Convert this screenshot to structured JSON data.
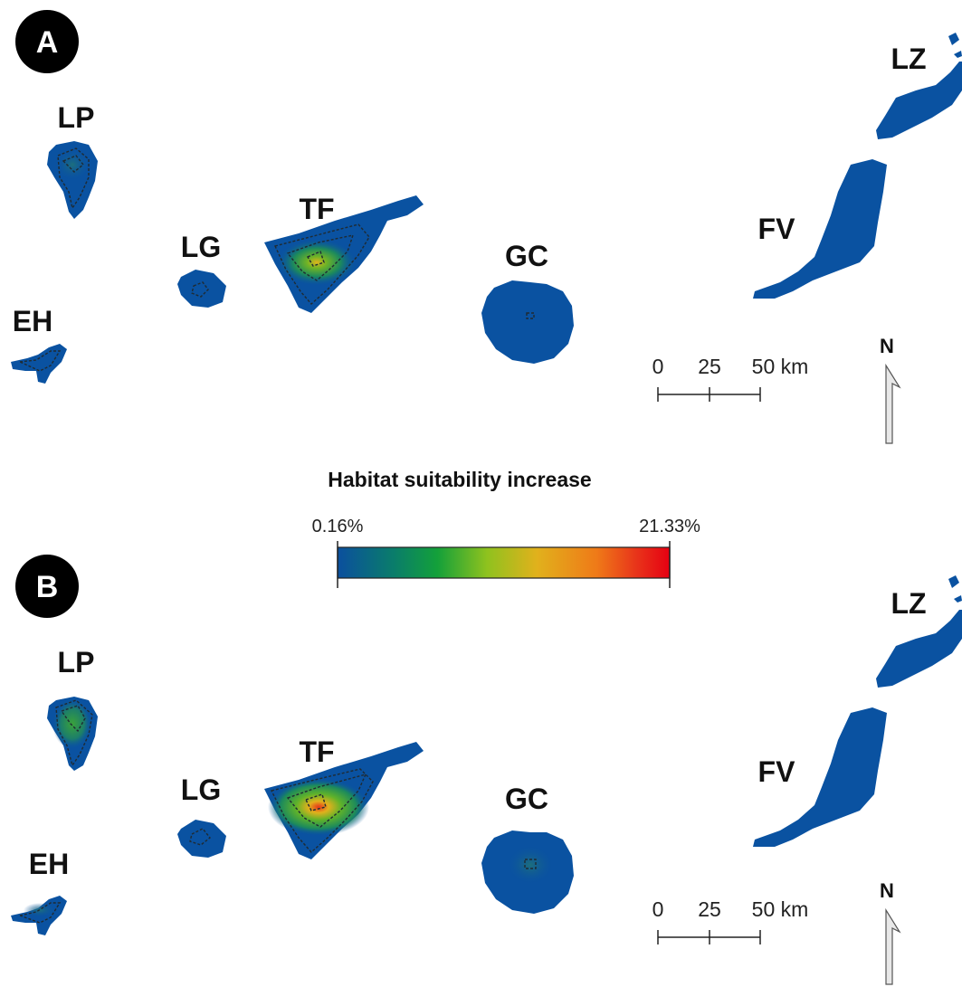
{
  "legend": {
    "title": "Habitat suitability increase",
    "min_label": "0.16%",
    "max_label": "21.33%",
    "colors": [
      "#0b4f9e",
      "#0a7d6a",
      "#13a03a",
      "#8fc21e",
      "#e1b11c",
      "#ef7a18",
      "#e8341a",
      "#e60012"
    ]
  },
  "scale_bar": {
    "ticks": [
      "0",
      "25",
      "50 km"
    ]
  },
  "north_label": "N",
  "panels": [
    {
      "letter": "A",
      "islands": [
        {
          "code": "LP",
          "hotspot": "#2e8b2e"
        },
        {
          "code": "EH",
          "hotspot": "#1a5e8e"
        },
        {
          "code": "LG",
          "hotspot": "#1a5e8e"
        },
        {
          "code": "TF",
          "hotspot": "#e0b31c"
        },
        {
          "code": "GC",
          "hotspot": "#1a5e8e"
        },
        {
          "code": "FV",
          "hotspot": "#0a52a1"
        },
        {
          "code": "LZ",
          "hotspot": "#0a52a1"
        }
      ]
    },
    {
      "letter": "B",
      "islands": [
        {
          "code": "LP",
          "hotspot": "#3aa23a"
        },
        {
          "code": "EH",
          "hotspot": "#1d6f7c"
        },
        {
          "code": "LG",
          "hotspot": "#1a5e8e"
        },
        {
          "code": "TF",
          "hotspot": "#e8341a"
        },
        {
          "code": "GC",
          "hotspot": "#1d6f7c"
        },
        {
          "code": "FV",
          "hotspot": "#0a52a1"
        },
        {
          "code": "LZ",
          "hotspot": "#0a52a1"
        }
      ]
    }
  ]
}
